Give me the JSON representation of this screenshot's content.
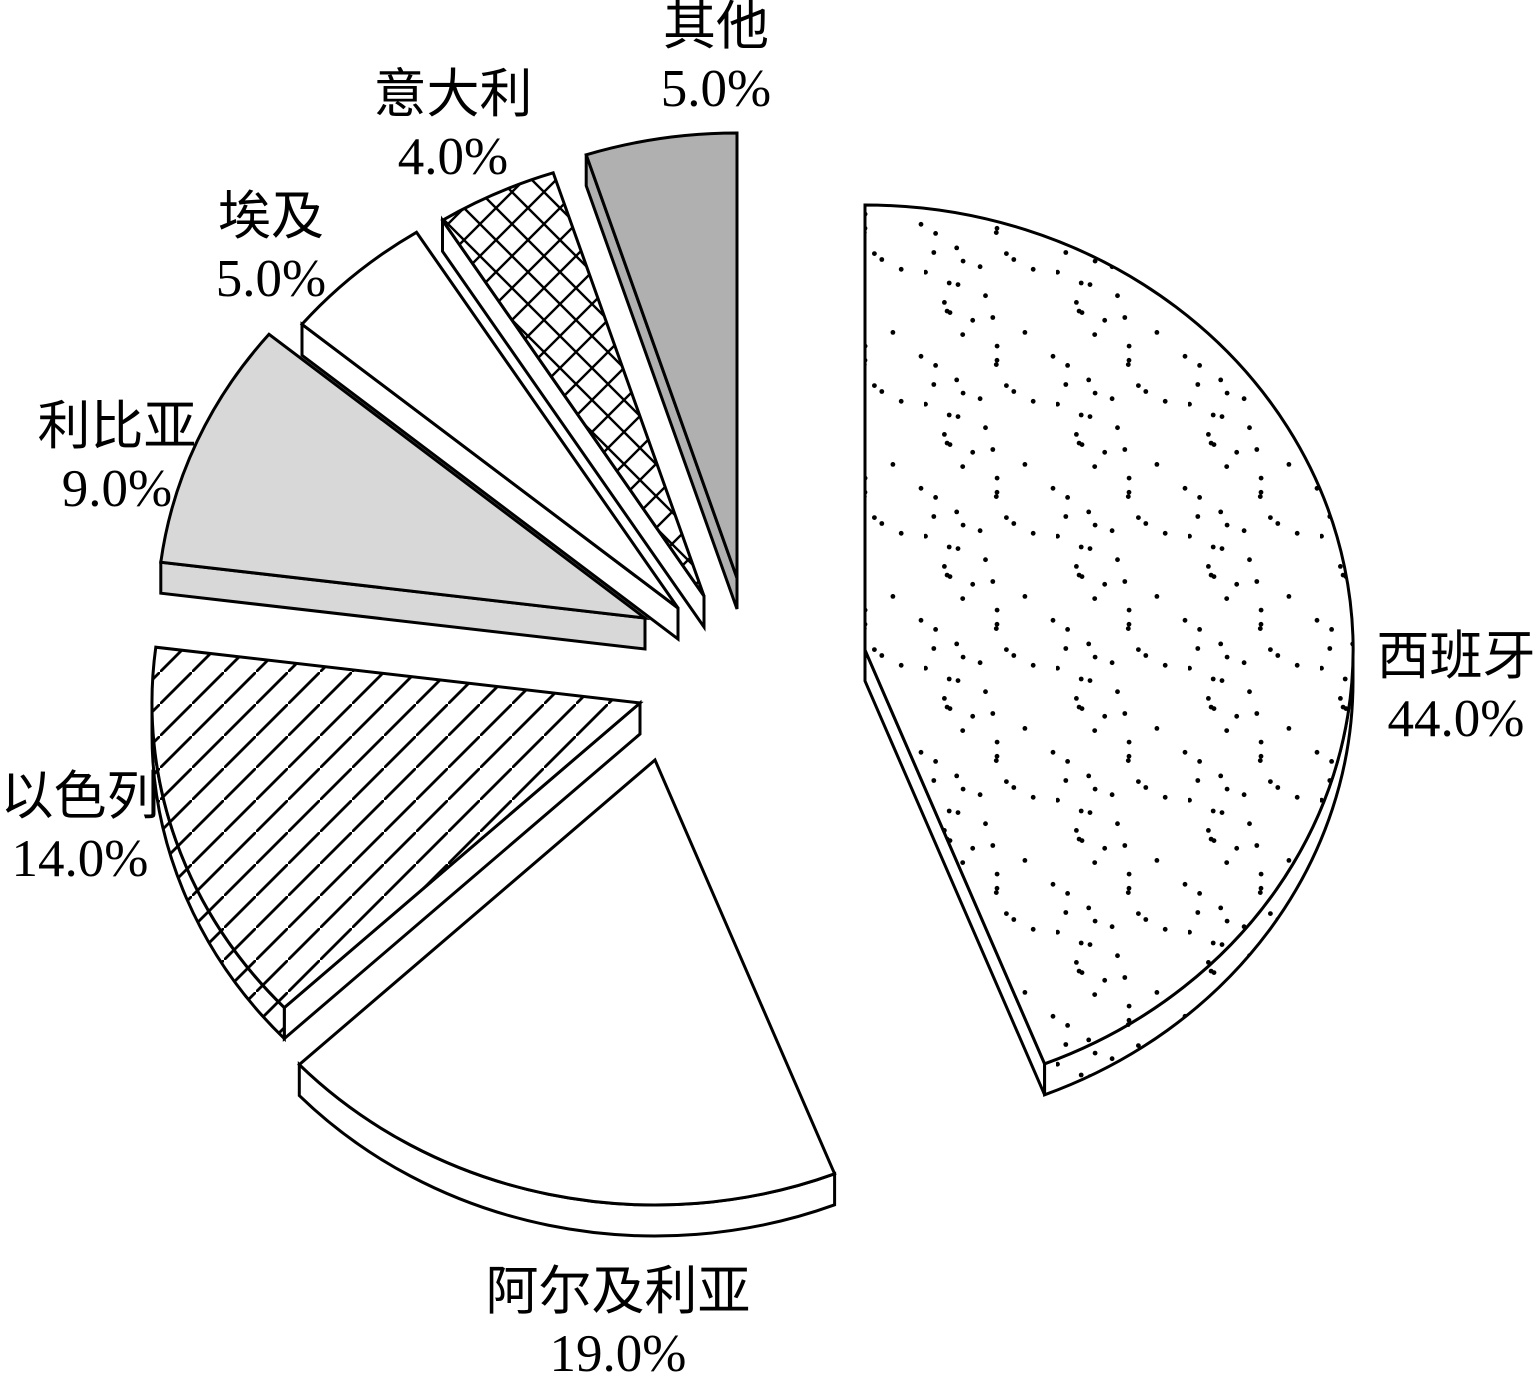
{
  "chart_data": {
    "type": "pie",
    "style": "3d-exploded",
    "title": "",
    "direction": "clockwise",
    "start_angle_deg": 0,
    "legend": "none",
    "background": "#ffffff",
    "outline_color": "#000000",
    "slices": [
      {
        "key": "spain",
        "label": "西班牙",
        "value": 44.0,
        "display": "44.0%",
        "pattern": "dots",
        "fill": "#ffffff"
      },
      {
        "key": "algeria",
        "label": "阿尔及利亚",
        "value": 19.0,
        "display": "19.0%",
        "pattern": "solid",
        "fill": "#ffffff"
      },
      {
        "key": "israel",
        "label": "以色列",
        "value": 14.0,
        "display": "14.0%",
        "pattern": "hatch",
        "fill": "#ffffff"
      },
      {
        "key": "libya",
        "label": "利比亚",
        "value": 9.0,
        "display": "9.0%",
        "pattern": "solid",
        "fill": "#d8d8d8"
      },
      {
        "key": "egypt",
        "label": "埃及",
        "value": 5.0,
        "display": "5.0%",
        "pattern": "solid",
        "fill": "#ffffff"
      },
      {
        "key": "italy",
        "label": "意大利",
        "value": 4.0,
        "display": "4.0%",
        "pattern": "crosshatch",
        "fill": "#ffffff"
      },
      {
        "key": "other",
        "label": "其他",
        "value": 5.0,
        "display": "5.0%",
        "pattern": "solid",
        "fill": "#b0b0b0"
      }
    ]
  }
}
